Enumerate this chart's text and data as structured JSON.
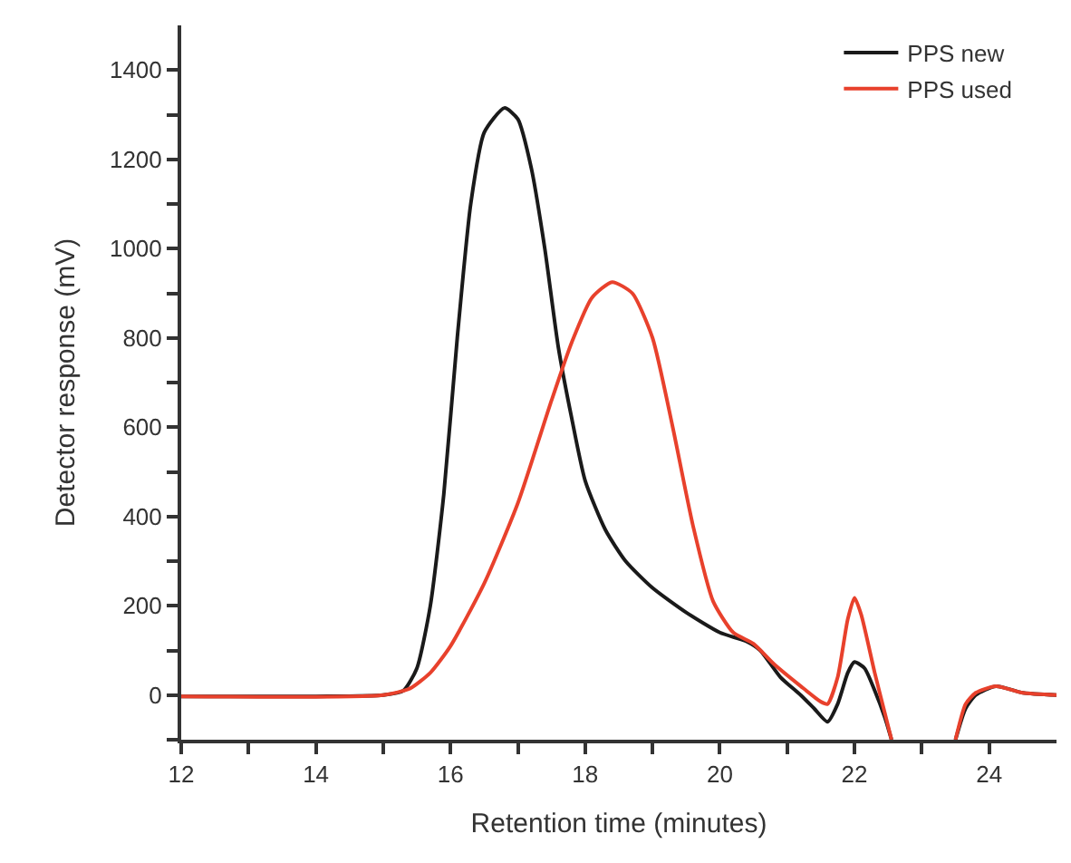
{
  "chart_data": {
    "type": "line",
    "xlabel": "Retention time (minutes)",
    "ylabel": "Detector response (mV)",
    "xlim": [
      12,
      25
    ],
    "ylim": [
      -100,
      1500
    ],
    "xticks": [
      12,
      {
        "value": 13,
        "label": null
      },
      14,
      {
        "value": 15,
        "label": null
      },
      16,
      {
        "value": 17,
        "label": null
      },
      18,
      {
        "value": 19,
        "label": null
      },
      20,
      {
        "value": 21,
        "label": null
      },
      22,
      {
        "value": 23,
        "label": null
      },
      24
    ],
    "yticks": [
      {
        "value": -100,
        "label": null
      },
      0,
      {
        "value": 100,
        "label": null
      },
      200,
      {
        "value": 300,
        "label": null
      },
      400,
      {
        "value": 500,
        "label": null
      },
      600,
      {
        "value": 700,
        "label": null
      },
      800,
      {
        "value": 900,
        "label": null
      },
      1000,
      {
        "value": 1100,
        "label": null
      },
      1200,
      {
        "value": 1300,
        "label": null
      },
      1400
    ],
    "legend": "top right",
    "marker": "none",
    "line_style": "solid",
    "series": [
      {
        "name": "PPS new",
        "color": "#1a1a1a",
        "x": [
          12,
          14,
          15,
          15.3,
          15.5,
          15.7,
          15.9,
          16.1,
          16.3,
          16.5,
          16.8,
          17.0,
          17.2,
          17.4,
          17.6,
          17.8,
          18.0,
          18.3,
          18.6,
          19.0,
          19.5,
          20.0,
          20.4,
          20.6,
          20.9,
          21.2,
          21.4,
          21.6,
          21.75,
          21.9,
          22.0,
          22.15,
          22.3,
          22.45,
          22.55,
          23.0,
          23.5,
          23.65,
          23.8,
          24.1,
          24.5,
          25
        ],
        "values": [
          -3,
          -3,
          0,
          10,
          60,
          200,
          450,
          800,
          1100,
          1260,
          1315,
          1290,
          1180,
          1000,
          780,
          620,
          480,
          370,
          300,
          240,
          185,
          140,
          120,
          100,
          40,
          0,
          -30,
          -60,
          -20,
          50,
          74,
          60,
          10,
          -50,
          -100,
          null,
          -100,
          -30,
          0,
          20,
          5,
          0
        ]
      },
      {
        "name": "PPS used",
        "color": "#e8412c",
        "x": [
          12,
          15,
          15.4,
          15.7,
          16.0,
          16.5,
          17.0,
          17.5,
          17.8,
          18.1,
          18.4,
          18.7,
          19.0,
          19.3,
          19.6,
          19.9,
          20.2,
          20.5,
          20.8,
          21.2,
          21.5,
          21.6,
          21.75,
          21.9,
          22.0,
          22.1,
          22.3,
          22.45,
          22.55,
          23.0,
          23.5,
          23.65,
          23.8,
          24.1,
          24.5,
          25
        ],
        "values": [
          -3,
          0,
          15,
          50,
          110,
          250,
          430,
          660,
          790,
          890,
          925,
          900,
          800,
          600,
          380,
          210,
          140,
          115,
          70,
          20,
          -15,
          -20,
          40,
          170,
          218,
          180,
          50,
          -40,
          -100,
          null,
          -100,
          -20,
          5,
          20,
          5,
          0
        ]
      }
    ]
  }
}
